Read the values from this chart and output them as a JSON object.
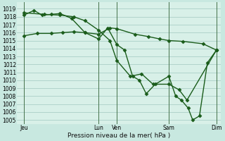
{
  "background_color": "#c8e8e0",
  "grid_color": "#a0c8c0",
  "line_color": "#1a5c1a",
  "plot_bg": "#d8f0e8",
  "xlim": [
    0,
    9.0
  ],
  "ylim": [
    1004.5,
    1019.8
  ],
  "yticks": [
    1005,
    1006,
    1007,
    1008,
    1009,
    1010,
    1011,
    1012,
    1013,
    1014,
    1015,
    1016,
    1017,
    1018,
    1019
  ],
  "xtick_positions": [
    0.3,
    3.6,
    4.4,
    6.7,
    8.8
  ],
  "xtick_labels": [
    "Jeu",
    "Lun",
    "Ven",
    "Sam",
    "Dim"
  ],
  "xlabel": "Pression niveau de la mer( hPa )",
  "vlines_x": [
    0.3,
    3.6,
    4.4,
    6.7,
    8.8
  ],
  "series": [
    {
      "x": [
        0.3,
        0.9,
        1.5,
        2.0,
        2.5,
        3.0,
        3.6,
        4.1,
        4.4,
        5.2,
        5.8,
        6.3,
        6.7,
        7.3,
        8.2,
        8.8
      ],
      "y": [
        1015.6,
        1015.9,
        1015.9,
        1016.0,
        1016.1,
        1016.0,
        1015.8,
        1016.6,
        1016.5,
        1015.8,
        1015.5,
        1015.2,
        1015.0,
        1014.9,
        1014.6,
        1013.8
      ],
      "marker": "D",
      "markersize": 2.5,
      "linewidth": 1.0
    },
    {
      "x": [
        0.3,
        0.75,
        1.1,
        1.5,
        1.9,
        2.4,
        3.0,
        3.6,
        4.0,
        4.4,
        4.75,
        5.1,
        5.4,
        5.7,
        6.1,
        6.7,
        7.0,
        7.25,
        7.55,
        7.75,
        8.05,
        8.4,
        8.8
      ],
      "y": [
        1018.2,
        1018.8,
        1018.2,
        1018.3,
        1018.4,
        1017.8,
        1016.0,
        1015.2,
        1016.6,
        1014.5,
        1013.8,
        1010.5,
        1010.0,
        1008.3,
        1009.5,
        1010.5,
        1008.0,
        1007.5,
        1006.5,
        1005.0,
        1005.5,
        1012.2,
        1013.8
      ],
      "marker": "D",
      "markersize": 2.5,
      "linewidth": 1.0
    },
    {
      "x": [
        0.3,
        1.2,
        1.9,
        2.5,
        3.0,
        3.6,
        4.1,
        4.4,
        5.0,
        5.5,
        6.0,
        6.7,
        7.15,
        7.5,
        8.8
      ],
      "y": [
        1018.5,
        1018.3,
        1018.2,
        1018.0,
        1017.5,
        1016.3,
        1015.0,
        1012.5,
        1010.5,
        1010.8,
        1009.5,
        1009.5,
        1008.8,
        1007.5,
        1013.8
      ],
      "marker": "D",
      "markersize": 2.5,
      "linewidth": 1.0
    }
  ]
}
